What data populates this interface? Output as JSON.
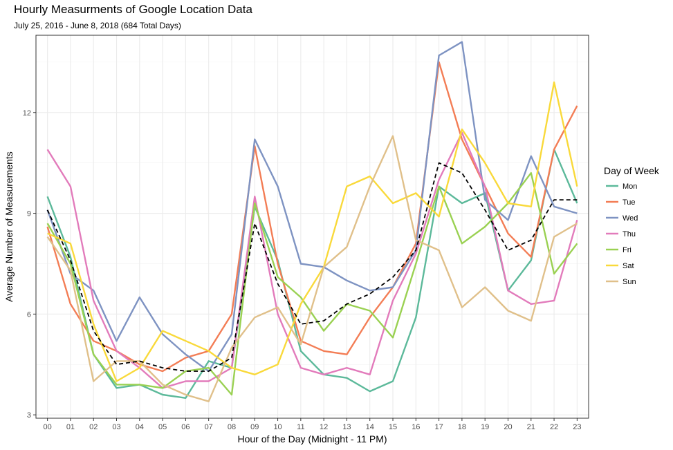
{
  "chart_data": {
    "type": "line",
    "title": "Hourly Measurments of Google Location Data",
    "subtitle": "July 25, 2016 - June 8, 2018 (684 Total Days)",
    "xlabel": "Hour of the Day (Midnight - 11 PM)",
    "ylabel": "Average Number of Measurements",
    "categories": [
      "00",
      "01",
      "02",
      "03",
      "04",
      "05",
      "06",
      "07",
      "08",
      "09",
      "10",
      "11",
      "12",
      "13",
      "14",
      "15",
      "16",
      "17",
      "18",
      "19",
      "20",
      "21",
      "22",
      "23"
    ],
    "ylim": [
      2.9,
      14.3
    ],
    "yticks": [
      3,
      6,
      9,
      12
    ],
    "grid": true,
    "legend": {
      "title": "Day of Week",
      "position": "right"
    },
    "series": [
      {
        "name": "Mon",
        "color": "#5cb99a",
        "values": [
          9.5,
          7.7,
          4.8,
          3.8,
          3.9,
          3.6,
          3.5,
          4.6,
          4.4,
          9.2,
          7.6,
          4.9,
          4.2,
          4.1,
          3.7,
          4.0,
          5.9,
          9.8,
          9.3,
          9.6,
          6.7,
          7.6,
          10.9,
          9.3
        ]
      },
      {
        "name": "Tue",
        "color": "#f37d55",
        "values": [
          8.6,
          6.3,
          5.2,
          4.9,
          4.5,
          4.3,
          4.7,
          4.9,
          6.0,
          11.0,
          7.5,
          5.2,
          4.9,
          4.8,
          5.9,
          6.8,
          8.1,
          13.5,
          11.2,
          9.8,
          8.4,
          7.7,
          10.9,
          12.2
        ]
      },
      {
        "name": "Wed",
        "color": "#7e93c2",
        "values": [
          9.1,
          7.2,
          6.7,
          5.2,
          6.5,
          5.4,
          4.8,
          4.3,
          5.4,
          11.2,
          9.8,
          7.5,
          7.4,
          7.0,
          6.7,
          6.8,
          7.9,
          13.7,
          14.1,
          9.4,
          8.8,
          10.7,
          9.2,
          9.0
        ]
      },
      {
        "name": "Thu",
        "color": "#e27bbb",
        "values": [
          10.9,
          9.8,
          6.4,
          4.9,
          4.4,
          3.8,
          4.0,
          4.0,
          4.4,
          9.5,
          6.0,
          4.4,
          4.2,
          4.4,
          4.2,
          6.4,
          7.8,
          10.0,
          11.4,
          9.8,
          6.7,
          6.3,
          6.4,
          8.8
        ]
      },
      {
        "name": "Fri",
        "color": "#9ad152",
        "values": [
          8.7,
          7.5,
          4.8,
          3.9,
          3.9,
          3.8,
          4.3,
          4.4,
          3.6,
          9.3,
          7.1,
          6.5,
          5.5,
          6.3,
          6.1,
          5.3,
          7.5,
          9.8,
          8.1,
          8.6,
          9.3,
          10.2,
          7.2,
          8.1
        ]
      },
      {
        "name": "Sat",
        "color": "#f9d93a",
        "values": [
          8.4,
          8.1,
          5.7,
          4.0,
          4.4,
          5.5,
          5.2,
          4.9,
          4.4,
          4.2,
          4.5,
          6.3,
          7.4,
          9.8,
          10.1,
          9.3,
          9.6,
          8.9,
          11.5,
          10.5,
          9.3,
          9.2,
          12.9,
          9.8
        ]
      },
      {
        "name": "Sun",
        "color": "#e0c08a",
        "values": [
          8.3,
          7.3,
          4.0,
          4.6,
          4.6,
          3.9,
          3.6,
          3.4,
          5.0,
          5.9,
          6.2,
          5.1,
          7.4,
          8.0,
          9.8,
          11.3,
          8.2,
          7.9,
          6.2,
          6.8,
          6.1,
          5.8,
          8.3,
          8.7
        ]
      },
      {
        "name": "",
        "color": "#000000",
        "dashed": true,
        "values": [
          9.1,
          7.6,
          5.5,
          4.5,
          4.6,
          4.4,
          4.3,
          4.3,
          4.7,
          8.7,
          6.9,
          5.7,
          5.8,
          6.3,
          6.6,
          7.1,
          7.9,
          10.5,
          10.2,
          9.1,
          7.9,
          8.2,
          9.4,
          9.4
        ]
      }
    ]
  }
}
